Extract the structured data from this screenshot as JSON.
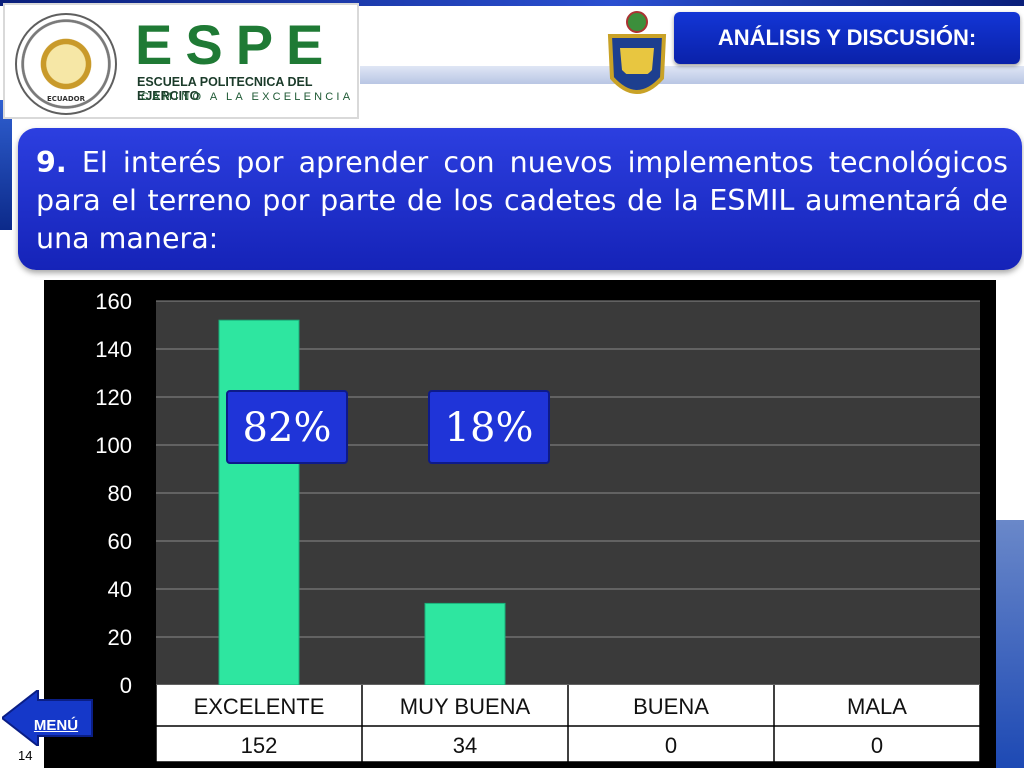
{
  "header": {
    "section_title": "ANÁLISIS Y DISCUSIÓN:",
    "logo": {
      "seal_text": "ECUADOR",
      "acronym": "ESPE",
      "name": "ESCUELA POLITECNICA DEL EJERCITO",
      "motto": "CAMINO A LA EXCELENCIA"
    },
    "badge_icon": "eloy-alfaro-crest-icon"
  },
  "question": {
    "number": "9.",
    "text": "El interés por aprender con nuevos implementos tecnológicos para el terreno por parte de los cadetes de la ESMIL aumentará de una manera:"
  },
  "chart_data": {
    "type": "bar",
    "categories": [
      "EXCELENTE",
      "MUY BUENA",
      "BUENA",
      "MALA"
    ],
    "values": [
      152,
      34,
      0,
      0
    ],
    "table_values": [
      "152",
      "34",
      "0",
      "0"
    ],
    "ylim": [
      0,
      160
    ],
    "yticks": [
      0,
      20,
      40,
      60,
      80,
      100,
      120,
      140,
      160
    ],
    "bar_color": "#2ee6a0",
    "plot_background": "#3a3a3a",
    "grid": true,
    "percent_labels": [
      {
        "category": "EXCELENTE",
        "text": "82%"
      },
      {
        "category": "MUY BUENA",
        "text": "18%"
      }
    ]
  },
  "nav": {
    "menu_label": "MENÚ",
    "page_number": "14"
  }
}
